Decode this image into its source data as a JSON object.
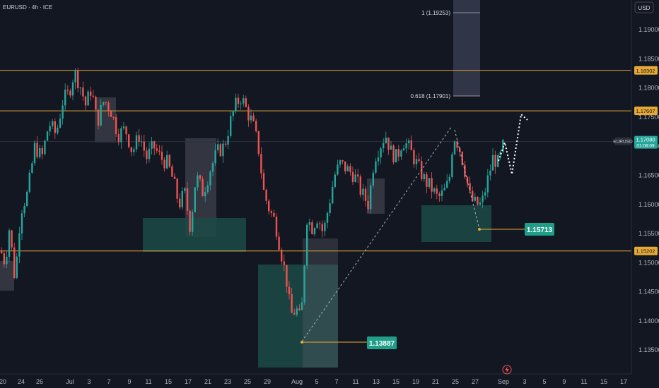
{
  "header": {
    "symbol_label": "EURUSD · 4h · ICE",
    "currency_button": "USD"
  },
  "colors": {
    "background": "#131722",
    "up": "#26a69a",
    "down": "#ef5350",
    "level_line": "#e7a936",
    "demand_zone": "#1c4a47",
    "gray_box": "#5b5e68",
    "fib_box": "#363b4d",
    "label_green": "#1f9e89"
  },
  "chart_data": {
    "type": "candlestick",
    "title": "EURUSD · 4h · ICE",
    "ylim": [
      1.132,
      1.1945
    ],
    "y_ticks": [
      "1.19000",
      "1.18500",
      "1.18000",
      "1.17500",
      "1.17000",
      "1.16500",
      "1.16000",
      "1.15500",
      "1.15000",
      "1.14500",
      "1.14000",
      "1.13500"
    ],
    "x_ticks": [
      "20",
      "24",
      "26",
      "Jul",
      "3",
      "7",
      "9",
      "11",
      "15",
      "17",
      "21",
      "23",
      "25",
      "29",
      "Aug",
      "5",
      "7",
      "11",
      "13",
      "15",
      "19",
      "21",
      "25",
      "27",
      "Sep",
      "3",
      "5",
      "9",
      "11",
      "15",
      "17"
    ],
    "horizontal_levels": [
      {
        "value": 1.18302,
        "label": "1.18302"
      },
      {
        "value": 1.17607,
        "label": "1.17607"
      },
      {
        "value": 1.15202,
        "label": "1.15202"
      }
    ],
    "current_price": {
      "symbol": "EURUSD",
      "value": 1.1708,
      "label": "1.17080",
      "countdown": "01:08:09"
    },
    "fib_levels": [
      {
        "ratio": "1",
        "value": 1.19253,
        "label": "1 (1.19253)"
      },
      {
        "ratio": "0.618",
        "value": 1.17901,
        "label": "0.618 (1.17901)"
      }
    ],
    "callouts": [
      {
        "value": 1.15713,
        "label": "1.15713"
      },
      {
        "value": 1.13887,
        "label": "1.13887"
      }
    ],
    "price_path": [
      [
        0,
        1.152
      ],
      [
        6,
        1.15
      ],
      [
        12,
        1.156
      ],
      [
        20,
        1.147
      ],
      [
        28,
        1.159
      ],
      [
        38,
        1.162
      ],
      [
        48,
        1.17
      ],
      [
        58,
        1.168
      ],
      [
        68,
        1.174
      ],
      [
        78,
        1.172
      ],
      [
        88,
        1.178
      ],
      [
        96,
        1.179
      ],
      [
        104,
        1.1828
      ],
      [
        112,
        1.1805
      ],
      [
        120,
        1.177
      ],
      [
        128,
        1.18
      ],
      [
        136,
        1.174
      ],
      [
        146,
        1.178
      ],
      [
        156,
        1.176
      ],
      [
        166,
        1.172
      ],
      [
        176,
        1.173
      ],
      [
        186,
        1.169
      ],
      [
        196,
        1.172
      ],
      [
        206,
        1.168
      ],
      [
        216,
        1.17
      ],
      [
        226,
        1.168
      ],
      [
        236,
        1.167
      ],
      [
        244,
        1.164
      ],
      [
        252,
        1.16
      ],
      [
        260,
        1.162
      ],
      [
        268,
        1.156
      ],
      [
        276,
        1.165
      ],
      [
        286,
        1.162
      ],
      [
        296,
        1.166
      ],
      [
        306,
        1.169
      ],
      [
        316,
        1.17
      ],
      [
        324,
        1.174
      ],
      [
        332,
        1.177
      ],
      [
        340,
        1.1785
      ],
      [
        348,
        1.176
      ],
      [
        356,
        1.174
      ],
      [
        364,
        1.17
      ],
      [
        372,
        1.162
      ],
      [
        380,
        1.159
      ],
      [
        388,
        1.157
      ],
      [
        396,
        1.152
      ],
      [
        404,
        1.147
      ],
      [
        410,
        1.141
      ],
      [
        418,
        1.142
      ],
      [
        424,
        1.14
      ],
      [
        428,
        1.146
      ],
      [
        432,
        1.158
      ],
      [
        440,
        1.156
      ],
      [
        448,
        1.158
      ],
      [
        456,
        1.155
      ],
      [
        464,
        1.16
      ],
      [
        472,
        1.165
      ],
      [
        480,
        1.167
      ],
      [
        490,
        1.166
      ],
      [
        500,
        1.165
      ],
      [
        510,
        1.162
      ],
      [
        520,
        1.16
      ],
      [
        528,
        1.168
      ],
      [
        536,
        1.17
      ],
      [
        544,
        1.172
      ],
      [
        552,
        1.169
      ],
      [
        560,
        1.168
      ],
      [
        568,
        1.171
      ],
      [
        576,
        1.17
      ],
      [
        584,
        1.168
      ],
      [
        592,
        1.166
      ],
      [
        600,
        1.164
      ],
      [
        608,
        1.163
      ],
      [
        618,
        1.161
      ],
      [
        626,
        1.162
      ],
      [
        634,
        1.164
      ],
      [
        640,
        1.172
      ],
      [
        648,
        1.17
      ],
      [
        656,
        1.166
      ],
      [
        664,
        1.161
      ],
      [
        672,
        1.16
      ],
      [
        680,
        1.16
      ],
      [
        688,
        1.164
      ],
      [
        696,
        1.168
      ],
      [
        704,
        1.167
      ],
      [
        712,
        1.1708
      ]
    ]
  },
  "ui": {
    "lightning_icon": "lightning-icon"
  }
}
